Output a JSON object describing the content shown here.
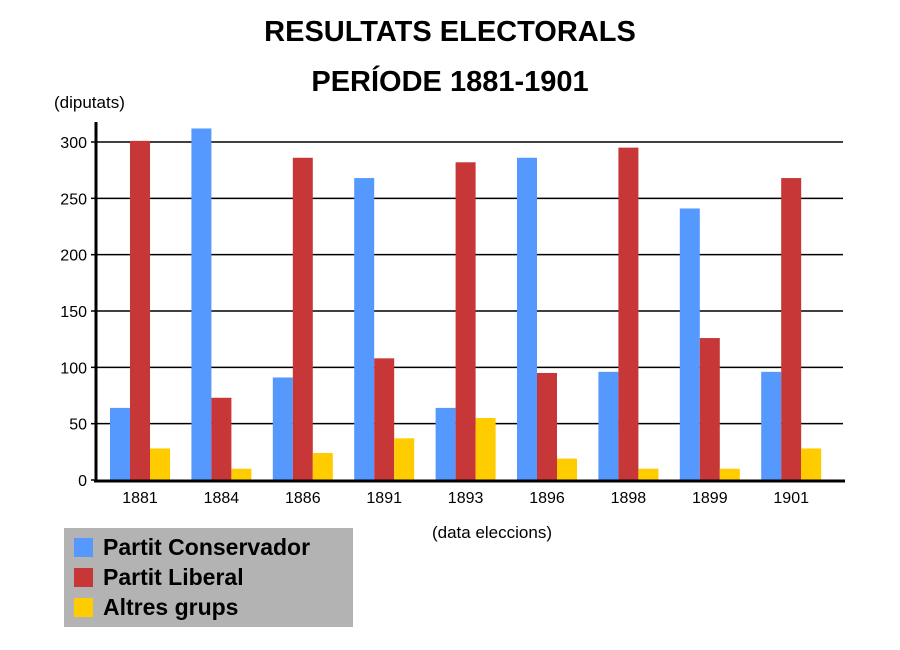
{
  "chart_data": {
    "type": "bar",
    "title": "RESULTATS ELECTORALS",
    "subtitle": "PERÍODE 1881-1901",
    "ylabel": "(diputats)",
    "xlabel": "(data eleccions)",
    "ylim": [
      0,
      300
    ],
    "yticks": [
      0,
      50,
      100,
      150,
      200,
      250,
      300
    ],
    "grid": true,
    "legend_position": "bottom-left",
    "categories": [
      "1881",
      "1884",
      "1886",
      "1891",
      "1893",
      "1896",
      "1898",
      "1899",
      "1901"
    ],
    "series": [
      {
        "name": "Partit Conservador",
        "color": "#5599ff",
        "values": [
          64,
          312,
          91,
          268,
          64,
          286,
          96,
          241,
          96
        ]
      },
      {
        "name": "Partit Liberal",
        "color": "#c83737",
        "values": [
          301,
          73,
          286,
          108,
          282,
          95,
          295,
          126,
          268
        ]
      },
      {
        "name": "Altres grups",
        "color": "#ffcc00",
        "values": [
          28,
          10,
          24,
          37,
          55,
          19,
          10,
          10,
          28
        ]
      }
    ]
  }
}
